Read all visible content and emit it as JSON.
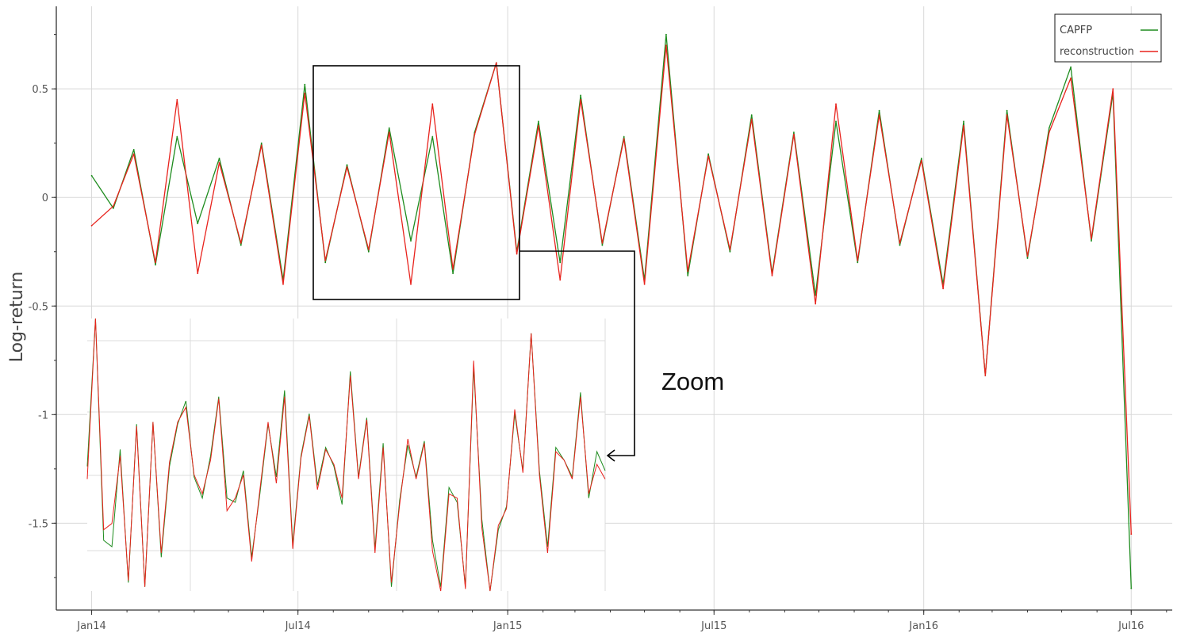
{
  "chart_data": {
    "type": "line",
    "title": "",
    "xlabel": "",
    "ylabel": "Log-return",
    "x_tick_labels": [
      "Jan14",
      "Jul14",
      "Jan15",
      "Jul15",
      "Jan16",
      "Jul16"
    ],
    "x_tick_dates": [
      "2014-01-01",
      "2014-07-01",
      "2015-01-01",
      "2015-07-01",
      "2016-01-01",
      "2016-07-01"
    ],
    "y_ticks": [
      0.5,
      0,
      -0.5,
      -1,
      -1.5
    ],
    "y_tick_labels": [
      "0.5",
      "0",
      "-0.5",
      "-1",
      "-1.5"
    ],
    "xlim": [
      "2013-12-01",
      "2016-08-06"
    ],
    "ylim": [
      -1.9,
      0.88
    ],
    "grid": true,
    "legend_position": "top-right",
    "series": [
      {
        "name": "CAPFP",
        "color": "#1e8c1e",
        "x": [
          "2014-01-01",
          "2014-01-20",
          "2014-02-07",
          "2014-02-26",
          "2014-03-17",
          "2014-04-04",
          "2014-04-23",
          "2014-05-12",
          "2014-05-30",
          "2014-06-18",
          "2014-07-07",
          "2014-07-25",
          "2014-08-13",
          "2014-09-01",
          "2014-09-19",
          "2014-10-08",
          "2014-10-27",
          "2014-11-14",
          "2014-12-03",
          "2014-12-22",
          "2015-01-09",
          "2015-01-28",
          "2015-02-16",
          "2015-03-06",
          "2015-03-25",
          "2015-04-13",
          "2015-05-01",
          "2015-05-20",
          "2015-06-08",
          "2015-06-26",
          "2015-07-15",
          "2015-08-03",
          "2015-08-21",
          "2015-09-09",
          "2015-09-28",
          "2015-10-16",
          "2015-11-04",
          "2015-11-23",
          "2015-12-11",
          "2015-12-30",
          "2016-01-18",
          "2016-02-05",
          "2016-02-24",
          "2016-03-14",
          "2016-04-01",
          "2016-04-20",
          "2016-05-09",
          "2016-05-27",
          "2016-06-15",
          "2016-07-01"
        ],
        "values": [
          0.1,
          -0.05,
          0.22,
          -0.31,
          0.28,
          -0.12,
          0.18,
          -0.22,
          0.25,
          -0.38,
          0.52,
          -0.3,
          0.15,
          -0.25,
          0.32,
          -0.2,
          0.28,
          -0.35,
          0.3,
          0.62,
          -0.25,
          0.35,
          -0.3,
          0.47,
          -0.22,
          0.28,
          -0.38,
          0.75,
          -0.36,
          0.2,
          -0.25,
          0.38,
          -0.35,
          0.3,
          -0.45,
          0.35,
          -0.3,
          0.4,
          -0.22,
          0.18,
          -0.4,
          0.35,
          -0.82,
          0.4,
          -0.28,
          0.32,
          0.6,
          -0.2,
          0.48,
          -1.8
        ]
      },
      {
        "name": "reconstruction",
        "color": "#e8231d",
        "x": [
          "2014-01-01",
          "2014-01-20",
          "2014-02-07",
          "2014-02-26",
          "2014-03-17",
          "2014-04-04",
          "2014-04-23",
          "2014-05-12",
          "2014-05-30",
          "2014-06-18",
          "2014-07-07",
          "2014-07-25",
          "2014-08-13",
          "2014-09-01",
          "2014-09-19",
          "2014-10-08",
          "2014-10-27",
          "2014-11-14",
          "2014-12-03",
          "2014-12-22",
          "2015-01-09",
          "2015-01-28",
          "2015-02-16",
          "2015-03-06",
          "2015-03-25",
          "2015-04-13",
          "2015-05-01",
          "2015-05-20",
          "2015-06-08",
          "2015-06-26",
          "2015-07-15",
          "2015-08-03",
          "2015-08-21",
          "2015-09-09",
          "2015-09-28",
          "2015-10-16",
          "2015-11-04",
          "2015-11-23",
          "2015-12-11",
          "2015-12-30",
          "2016-01-18",
          "2016-02-05",
          "2016-02-24",
          "2016-03-14",
          "2016-04-01",
          "2016-04-20",
          "2016-05-09",
          "2016-05-27",
          "2016-06-15",
          "2016-07-01"
        ],
        "values": [
          -0.13,
          -0.04,
          0.2,
          -0.3,
          0.45,
          -0.35,
          0.16,
          -0.21,
          0.24,
          -0.4,
          0.48,
          -0.29,
          0.14,
          -0.24,
          0.3,
          -0.4,
          0.43,
          -0.33,
          0.29,
          0.62,
          -0.26,
          0.33,
          -0.38,
          0.45,
          -0.21,
          0.27,
          -0.4,
          0.7,
          -0.34,
          0.19,
          -0.24,
          0.36,
          -0.36,
          0.29,
          -0.49,
          0.43,
          -0.29,
          0.38,
          -0.21,
          0.17,
          -0.42,
          0.33,
          -0.82,
          0.38,
          -0.27,
          0.3,
          0.55,
          -0.19,
          0.5,
          -1.55
        ]
      }
    ],
    "legend": [
      "CAPFP",
      "reconstruction"
    ]
  },
  "inset": {
    "label": "Zoom",
    "series_green_y": [
      -1.25,
      -0.55,
      -1.6,
      -1.63,
      -1.17,
      -1.8,
      -1.05,
      -1.82,
      -1.04,
      -1.68,
      -1.25,
      -1.05,
      -0.94,
      -1.3,
      -1.4,
      -1.2,
      -0.92,
      -1.4,
      -1.42,
      -1.27,
      -1.68,
      -1.38,
      -1.05,
      -1.3,
      -0.89,
      -1.62,
      -1.2,
      -1.0,
      -1.34,
      -1.16,
      -1.25,
      -1.43,
      -0.8,
      -1.3,
      -1.02,
      -1.64,
      -1.14,
      -1.82,
      -1.41,
      -1.15,
      -1.3,
      -1.13,
      -1.6,
      -1.82,
      -1.35,
      -1.42,
      -1.82,
      -0.78,
      -1.5,
      -1.84,
      -1.55,
      -1.44,
      -1.0,
      -1.27,
      -0.62,
      -1.27,
      -1.63,
      -1.16,
      -1.22,
      -1.3,
      -0.9,
      -1.4,
      -1.18,
      -1.27
    ],
    "series_red_y": [
      -1.31,
      -0.55,
      -1.55,
      -1.52,
      -1.2,
      -1.79,
      -1.06,
      -1.82,
      -1.04,
      -1.66,
      -1.23,
      -1.04,
      -0.97,
      -1.29,
      -1.38,
      -1.22,
      -0.93,
      -1.46,
      -1.4,
      -1.29,
      -1.7,
      -1.36,
      -1.04,
      -1.33,
      -0.92,
      -1.64,
      -1.21,
      -1.01,
      -1.36,
      -1.17,
      -1.24,
      -1.4,
      -0.82,
      -1.31,
      -1.03,
      -1.66,
      -1.16,
      -1.8,
      -1.43,
      -1.12,
      -1.31,
      -1.14,
      -1.65,
      -1.84,
      -1.38,
      -1.4,
      -1.83,
      -0.75,
      -1.54,
      -1.84,
      -1.53,
      -1.45,
      -0.98,
      -1.28,
      -0.62,
      -1.29,
      -1.66,
      -1.18,
      -1.22,
      -1.31,
      -0.92,
      -1.38,
      -1.24,
      -1.31
    ]
  }
}
